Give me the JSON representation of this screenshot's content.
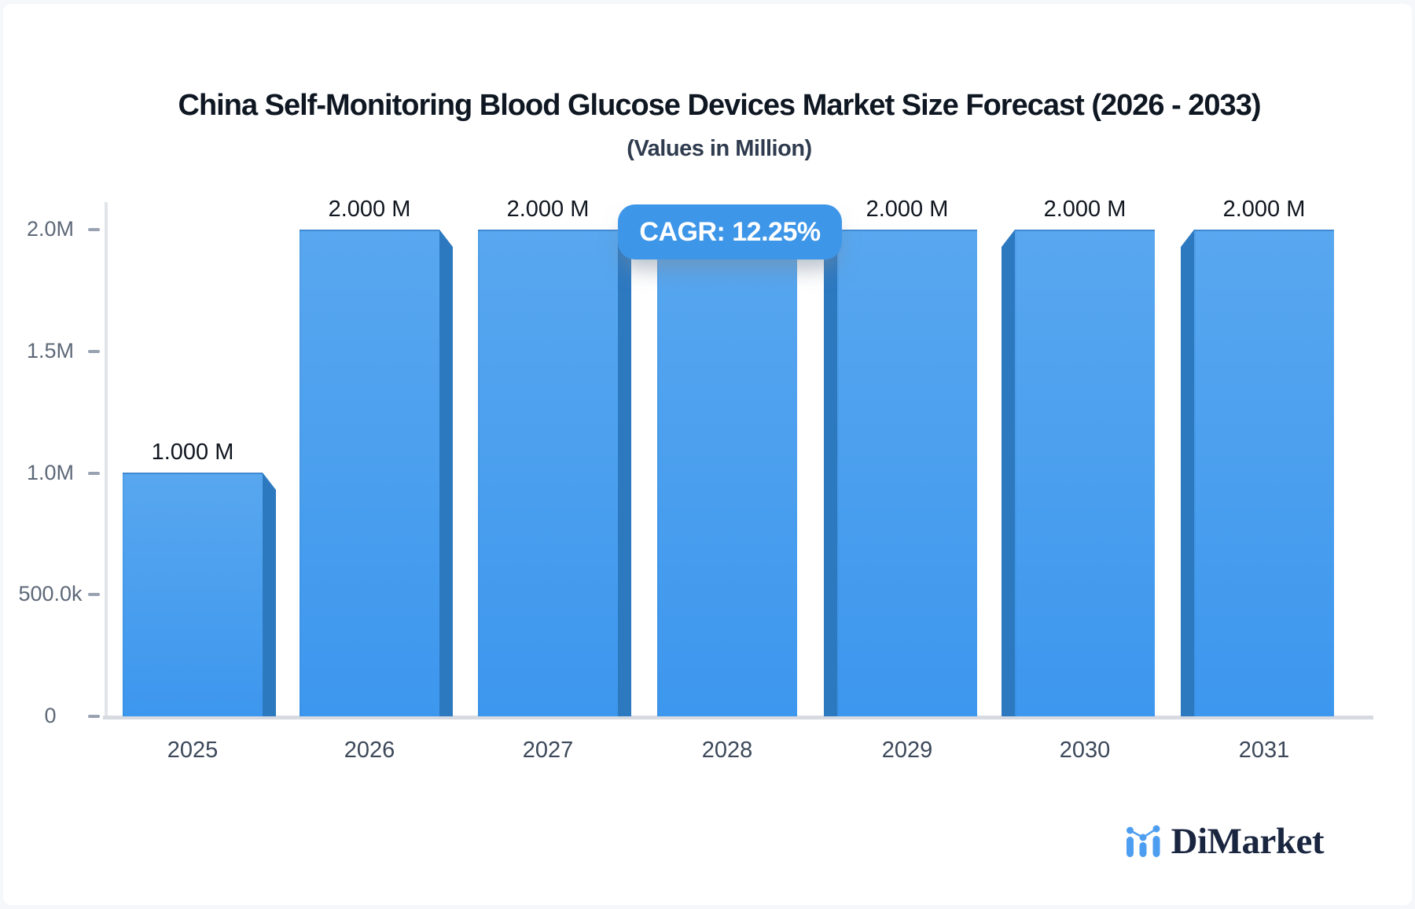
{
  "page": {
    "background": "#f6f7fa",
    "card_background": "#ffffff"
  },
  "chart_data": {
    "type": "bar",
    "title": "China Self-Monitoring Blood Glucose Devices Market Size Forecast (2026 - 2033)",
    "subtitle": "(Values in Million)",
    "categories": [
      "2025",
      "2026",
      "2027",
      "2028",
      "2029",
      "2030",
      "2031"
    ],
    "values": [
      1000000,
      2000000,
      2000000,
      2000000,
      2000000,
      2000000,
      2000000
    ],
    "value_labels": [
      "1.000 M",
      "2.000 M",
      "2.000 M",
      null,
      "2.000 M",
      "2.000 M",
      "2.000 M"
    ],
    "ylim": [
      0,
      2000000
    ],
    "yticks": [
      {
        "label": "0",
        "value": 0
      },
      {
        "label": "500.0k",
        "value": 500000
      },
      {
        "label": "1.0M",
        "value": 1000000
      },
      {
        "label": "1.5M",
        "value": 1500000
      },
      {
        "label": "2.0M",
        "value": 2000000
      }
    ],
    "xlabel": "",
    "ylabel": "",
    "grid": false,
    "legend": false,
    "bar_style": "3d-box",
    "bar_colors": {
      "face_top": "#58a7ef",
      "face_bottom": "#3d97ee",
      "side": "#2d79c0"
    },
    "axis_colors": {
      "x_line": "#d7dbe1",
      "y_line": "#e1e4e9",
      "tick_text": "#5d6878",
      "category_text": "#3c485a",
      "value_text": "#10161f"
    }
  },
  "badge": {
    "label": "CAGR: 12.25%",
    "background": "#3e96e9",
    "text_color": "#ffffff"
  },
  "logo": {
    "text": "DiMarket",
    "icon": "mini-bar-line-chart-icon",
    "icon_color": "#4d9ef0",
    "text_color": "#1a2640"
  }
}
